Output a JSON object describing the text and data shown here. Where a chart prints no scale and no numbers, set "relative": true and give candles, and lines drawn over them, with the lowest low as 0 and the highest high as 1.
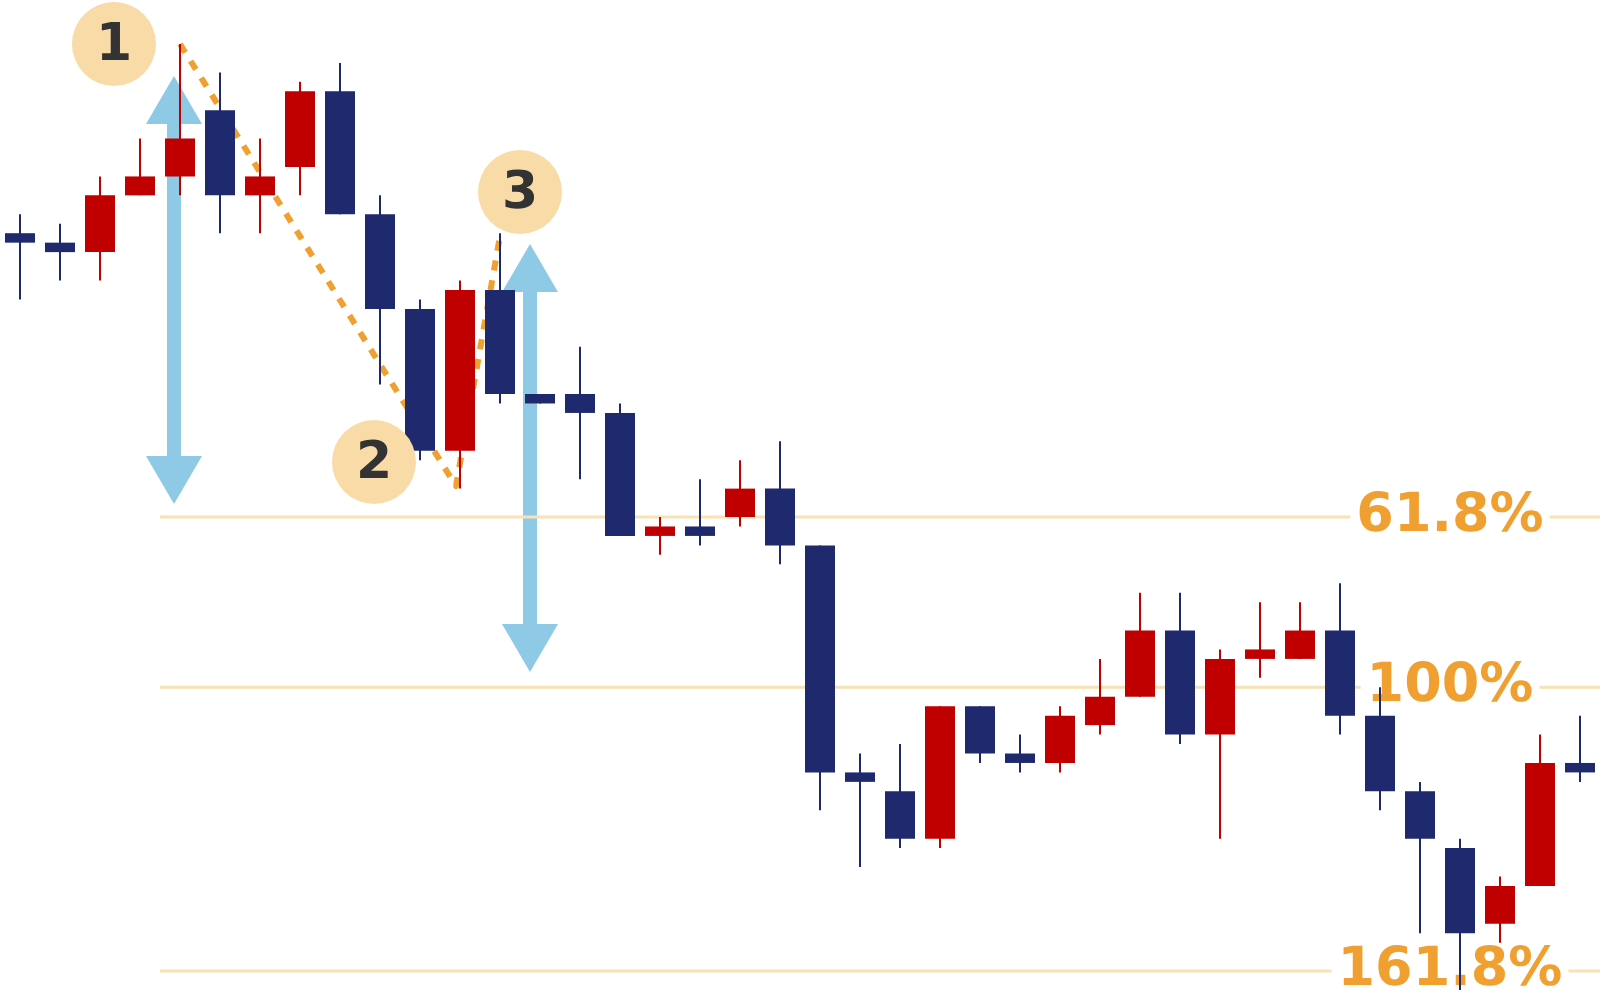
{
  "chart_data": {
    "type": "candlestick",
    "relative": true,
    "categories": [
      null,
      null,
      null,
      null,
      null,
      null,
      null,
      null,
      null,
      null,
      null,
      null,
      null,
      null,
      null,
      null,
      null,
      null,
      null,
      null,
      null,
      null,
      null,
      null,
      null,
      null,
      null,
      null,
      null,
      null,
      null,
      null,
      null,
      null,
      null,
      null,
      null,
      null,
      null,
      null
    ],
    "ohlc": [
      [
        0.8,
        0.82,
        0.73,
        0.79
      ],
      [
        0.79,
        0.81,
        0.75,
        0.78
      ],
      [
        0.78,
        0.86,
        0.75,
        0.84
      ],
      [
        0.84,
        0.9,
        0.84,
        0.86
      ],
      [
        0.86,
        1.0,
        0.84,
        0.9
      ],
      [
        0.93,
        0.97,
        0.8,
        0.84
      ],
      [
        0.84,
        0.9,
        0.8,
        0.86
      ],
      [
        0.87,
        0.96,
        0.84,
        0.95
      ],
      [
        0.95,
        0.98,
        0.82,
        0.82
      ],
      [
        0.82,
        0.84,
        0.64,
        0.72
      ],
      [
        0.72,
        0.73,
        0.56,
        0.57
      ],
      [
        0.57,
        0.75,
        0.53,
        0.74
      ],
      [
        0.74,
        0.8,
        0.62,
        0.63
      ],
      [
        0.63,
        0.63,
        0.62,
        0.62
      ],
      [
        0.63,
        0.68,
        0.54,
        0.61
      ],
      [
        0.61,
        0.62,
        0.48,
        0.48
      ],
      [
        0.48,
        0.5,
        0.46,
        0.49
      ],
      [
        0.49,
        0.54,
        0.47,
        0.48
      ],
      [
        0.5,
        0.56,
        0.49,
        0.53
      ],
      [
        0.53,
        0.58,
        0.45,
        0.47
      ],
      [
        0.47,
        0.47,
        0.19,
        0.23
      ],
      [
        0.23,
        0.25,
        0.13,
        0.22
      ],
      [
        0.21,
        0.26,
        0.15,
        0.16
      ],
      [
        0.16,
        0.3,
        0.15,
        0.3
      ],
      [
        0.3,
        0.3,
        0.24,
        0.25
      ],
      [
        0.25,
        0.27,
        0.23,
        0.24
      ],
      [
        0.24,
        0.3,
        0.23,
        0.29
      ],
      [
        0.28,
        0.35,
        0.27,
        0.31
      ],
      [
        0.31,
        0.42,
        0.31,
        0.38
      ],
      [
        0.38,
        0.42,
        0.26,
        0.27
      ],
      [
        0.27,
        0.36,
        0.16,
        0.35
      ],
      [
        0.35,
        0.41,
        0.33,
        0.36
      ],
      [
        0.35,
        0.41,
        0.35,
        0.38
      ],
      [
        0.38,
        0.43,
        0.27,
        0.29
      ],
      [
        0.29,
        0.32,
        0.19,
        0.21
      ],
      [
        0.21,
        0.22,
        0.06,
        0.16
      ],
      [
        0.15,
        0.16,
        0,
        0.06
      ],
      [
        0.07,
        0.12,
        0.05,
        0.11
      ],
      [
        0.11,
        0.27,
        0.11,
        0.24
      ],
      [
        0.24,
        0.29,
        0.22,
        0.23
      ]
    ],
    "colors": [
      "#1f2a6e",
      "#1f2a6e",
      "#c00000",
      "#c00000",
      "#c00000",
      "#1f2a6e",
      "#c00000",
      "#c00000",
      "#1f2a6e",
      "#1f2a6e",
      "#1f2a6e",
      "#c00000",
      "#1f2a6e",
      "#1f2a6e",
      "#1f2a6e",
      "#1f2a6e",
      "#c00000",
      "#1f2a6e",
      "#c00000",
      "#1f2a6e",
      "#1f2a6e",
      "#1f2a6e",
      "#1f2a6e",
      "#c00000",
      "#1f2a6e",
      "#1f2a6e",
      "#c00000",
      "#c00000",
      "#c00000",
      "#1f2a6e",
      "#c00000",
      "#c00000",
      "#c00000",
      "#1f2a6e",
      "#1f2a6e",
      "#1f2a6e",
      "#1f2a6e",
      "#c00000",
      "#c00000",
      "#1f2a6e"
    ],
    "ref_lines": [
      {
        "axis": "y",
        "value": 0.5,
        "color": "#f7e1b5"
      },
      {
        "axis": "y",
        "value": 0.32,
        "color": "#f7e1b5"
      },
      {
        "axis": "y",
        "value": 0.02,
        "color": "#f7e1b5"
      }
    ],
    "annotations": [
      "1",
      "2",
      "3",
      {
        "text": "61.8%",
        "y": 0.5
      },
      {
        "text": "100%",
        "y": 0.32
      },
      {
        "text": "161.8%",
        "y": 0.02
      }
    ]
  }
}
